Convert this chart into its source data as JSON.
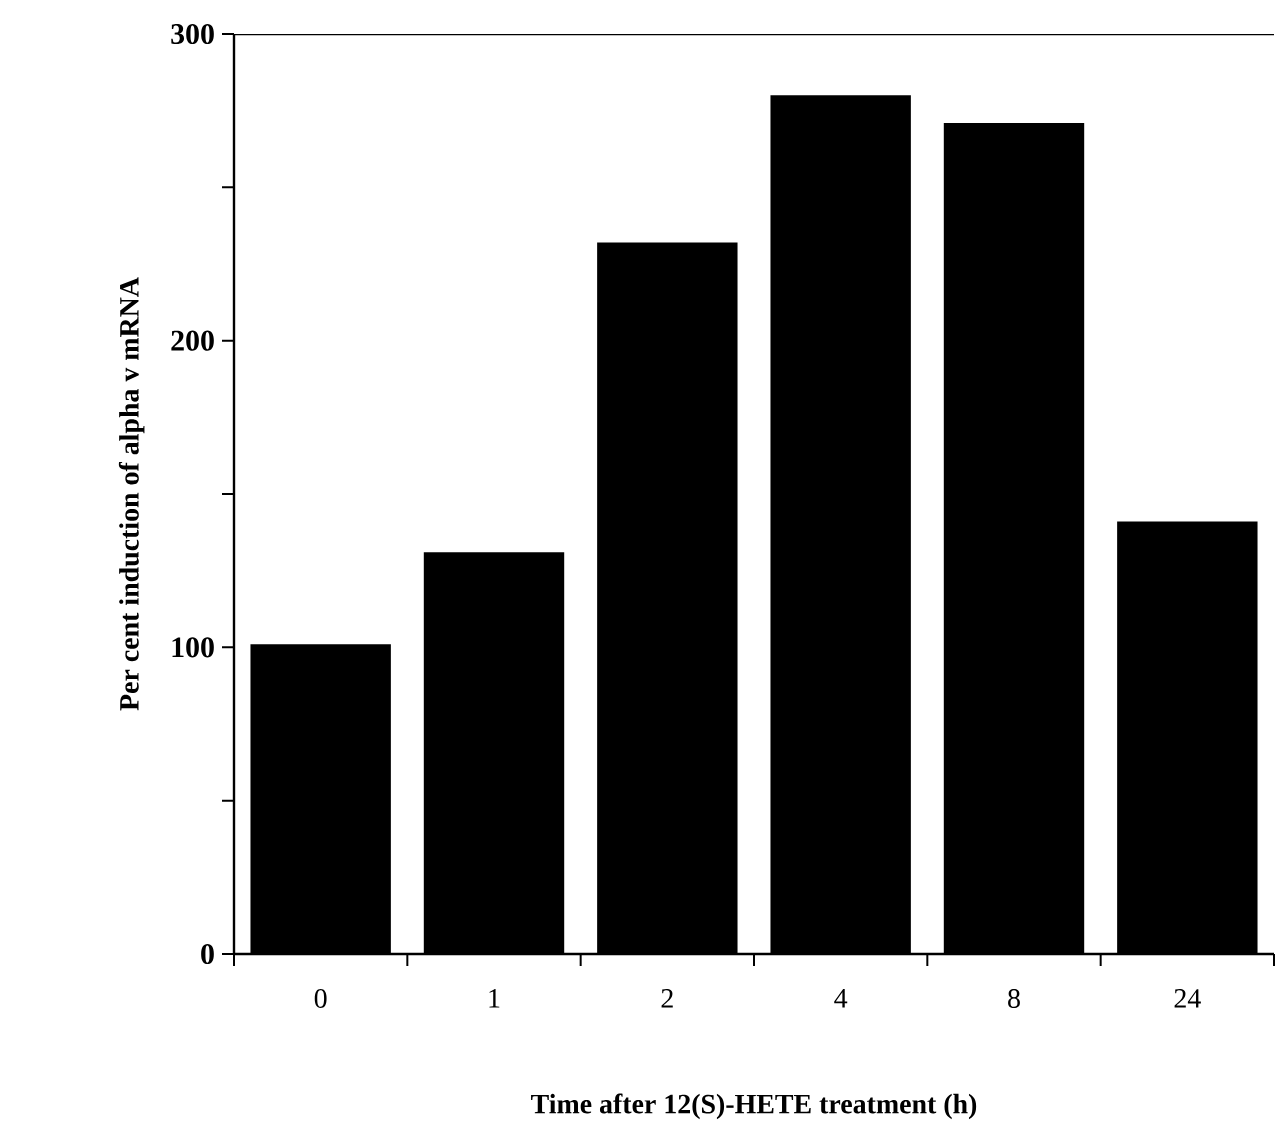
{
  "chart_data": {
    "type": "bar",
    "xlabel": "Time after 12(S)-HETE treatment (h)",
    "ylabel": "Per cent induction of alpha v mRNA",
    "categories": [
      "0",
      "1",
      "2",
      "4",
      "8",
      "24"
    ],
    "values": [
      101,
      131,
      232,
      280,
      271,
      141
    ],
    "color": "#000000",
    "ylim": [
      0,
      300
    ],
    "yticks": [
      0,
      {
        "value": 50,
        "label": null
      },
      100,
      {
        "value": 150,
        "label": null
      },
      200,
      {
        "value": 250,
        "label": null
      },
      300
    ],
    "grid": false
  }
}
